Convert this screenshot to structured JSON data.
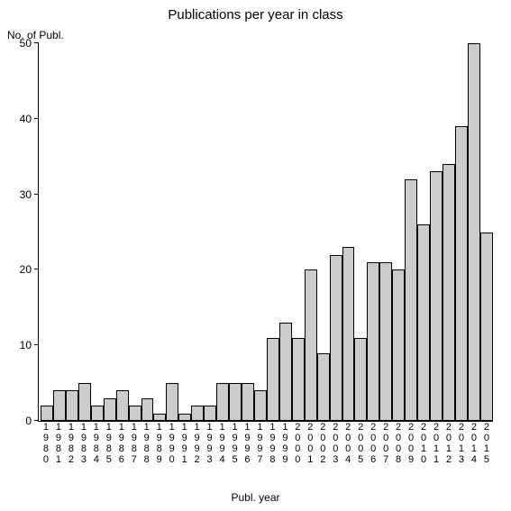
{
  "chart": {
    "type": "bar",
    "title": "Publications per year in class",
    "title_fontsize": 15,
    "xlabel": "Publ. year",
    "ylabel": "No. of Publ.",
    "label_fontsize": 12,
    "background_color": "#ffffff",
    "axis_color": "#000000",
    "bar_fill": "#cccccc",
    "bar_border": "#000000",
    "ylim": [
      0,
      50
    ],
    "yticks": [
      0,
      10,
      20,
      30,
      40,
      50
    ],
    "tick_fontsize": 12,
    "xtick_fontsize": 11,
    "categories": [
      "1980",
      "1981",
      "1982",
      "1983",
      "1984",
      "1985",
      "1986",
      "1987",
      "1988",
      "1989",
      "1990",
      "1991",
      "1992",
      "1993",
      "1994",
      "1995",
      "1996",
      "1997",
      "1998",
      "1999",
      "2000",
      "2001",
      "2002",
      "2003",
      "2004",
      "2005",
      "2006",
      "2007",
      "2008",
      "2009",
      "2010",
      "2011",
      "2012",
      "2013",
      "2014",
      "2015"
    ],
    "values": [
      2,
      4,
      4,
      5,
      2,
      3,
      4,
      2,
      3,
      1,
      5,
      1,
      2,
      2,
      5,
      5,
      5,
      4,
      11,
      13,
      11,
      20,
      9,
      22,
      23,
      11,
      21,
      21,
      20,
      32,
      26,
      33,
      34,
      39,
      50,
      25
    ]
  }
}
